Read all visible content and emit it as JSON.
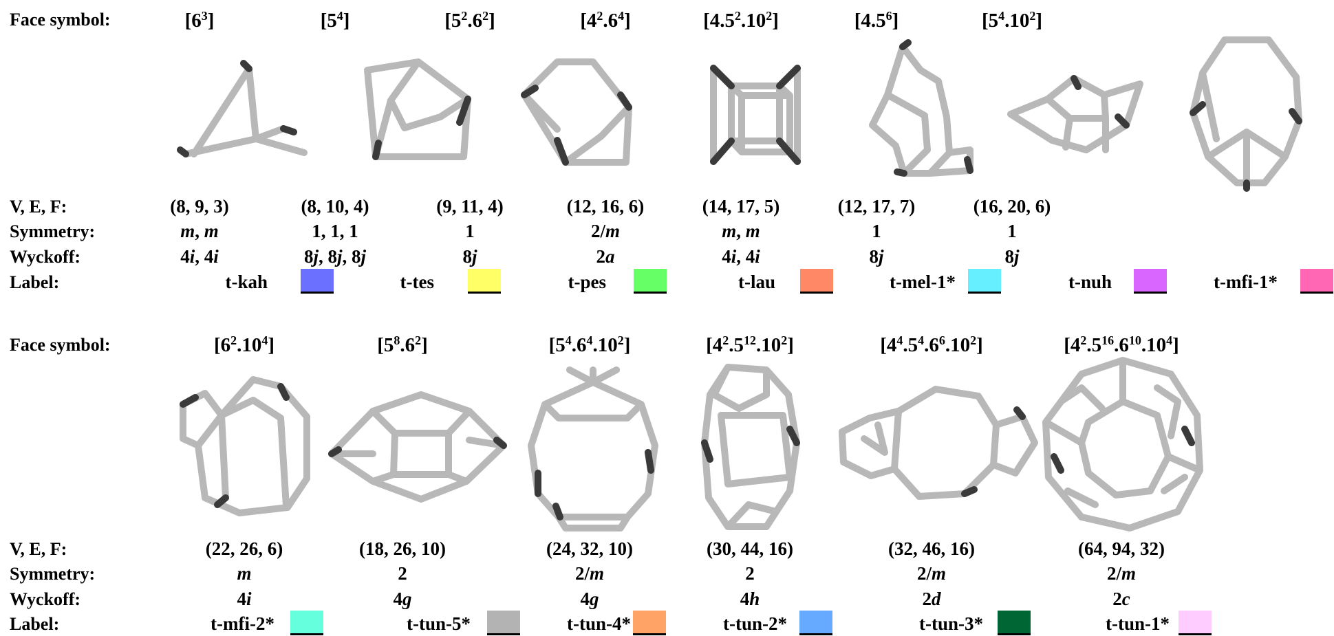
{
  "row_labels": {
    "face_symbol": "Face symbol:",
    "vef": "V, E, F:",
    "symmetry": "Symmetry:",
    "wyckoff": "Wyckoff:",
    "label": "Label:"
  },
  "tiles": [
    {
      "face": [
        [
          "6",
          "3"
        ]
      ],
      "vef": "(8, 9, 3)",
      "sym": [
        [
          "m",
          true
        ],
        [
          ", ",
          false
        ],
        [
          "m",
          true
        ]
      ],
      "wyck": [
        [
          "4",
          false
        ],
        [
          "i",
          true
        ],
        [
          ", 4",
          false
        ],
        [
          "i",
          true
        ]
      ],
      "label": "t-kah",
      "color": "#6b70ff"
    },
    {
      "face": [
        [
          "5",
          "4"
        ]
      ],
      "vef": "(8, 10, 4)",
      "sym": [
        [
          "1, 1, 1",
          false
        ]
      ],
      "wyck": [
        [
          "8",
          false
        ],
        [
          "j",
          true
        ],
        [
          ", 8",
          false
        ],
        [
          "j",
          true
        ],
        [
          ", 8",
          false
        ],
        [
          "j",
          true
        ]
      ],
      "label": "t-tes",
      "color": "#ffff66"
    },
    {
      "face": [
        [
          "5",
          "2"
        ],
        [
          ".6",
          "2"
        ]
      ],
      "vef": "(9, 11, 4)",
      "sym": [
        [
          "1",
          false
        ]
      ],
      "wyck": [
        [
          "8",
          false
        ],
        [
          "j",
          true
        ]
      ],
      "label": "t-pes",
      "color": "#66ff66"
    },
    {
      "face": [
        [
          "4",
          "2"
        ],
        [
          ".6",
          "4"
        ]
      ],
      "vef": "(12, 16, 6)",
      "sym": [
        [
          "2/",
          false
        ],
        [
          "m",
          true
        ]
      ],
      "wyck": [
        [
          "2",
          false
        ],
        [
          "a",
          true
        ]
      ],
      "label": "t-lau",
      "color": "#ff8866"
    },
    {
      "face": [
        [
          "4.5",
          "2"
        ],
        [
          ".10",
          "2"
        ]
      ],
      "vef": "(14, 17, 5)",
      "sym": [
        [
          "m",
          true
        ],
        [
          ", ",
          false
        ],
        [
          "m",
          true
        ]
      ],
      "wyck": [
        [
          "4",
          false
        ],
        [
          "i",
          true
        ],
        [
          ", 4",
          false
        ],
        [
          "i",
          true
        ]
      ],
      "label": "t-mel-1*",
      "color": "#66f0ff"
    },
    {
      "face": [
        [
          "4.5",
          "6"
        ]
      ],
      "vef": "(12, 17, 7)",
      "sym": [
        [
          "1",
          false
        ]
      ],
      "wyck": [
        [
          "8",
          false
        ],
        [
          "j",
          true
        ]
      ],
      "label": "t-nuh",
      "color": "#d966ff"
    },
    {
      "face": [
        [
          "5",
          "4"
        ],
        [
          ".10",
          "2"
        ]
      ],
      "vef": "(16, 20, 6)",
      "sym": [
        [
          "1",
          false
        ]
      ],
      "wyck": [
        [
          "8",
          false
        ],
        [
          "j",
          true
        ]
      ],
      "label": "t-mfi-1*",
      "color": "#ff66b3"
    },
    {
      "face": [
        [
          "6",
          "2"
        ],
        [
          ".10",
          "4"
        ]
      ],
      "vef": "(22, 26, 6)",
      "sym": [
        [
          "m",
          true
        ]
      ],
      "wyck": [
        [
          "4",
          false
        ],
        [
          "i",
          true
        ]
      ],
      "label": "t-mfi-2*",
      "color": "#66ffdd"
    },
    {
      "face": [
        [
          "5",
          "8"
        ],
        [
          ".6",
          "2"
        ]
      ],
      "vef": "(18, 26, 10)",
      "sym": [
        [
          "2",
          false
        ]
      ],
      "wyck": [
        [
          "4",
          false
        ],
        [
          "g",
          true
        ]
      ],
      "label": "t-tun-5*",
      "color": "#b3b3b3"
    },
    {
      "face": [
        [
          "5",
          "4"
        ],
        [
          ".6",
          "4"
        ],
        [
          ".10",
          "2"
        ]
      ],
      "vef": "(24, 32, 10)",
      "sym": [
        [
          "2/",
          false
        ],
        [
          "m",
          true
        ]
      ],
      "wyck": [
        [
          "4",
          false
        ],
        [
          "g",
          true
        ]
      ],
      "label": "t-tun-4*",
      "color": "#ffa366"
    },
    {
      "face": [
        [
          "4",
          "2"
        ],
        [
          ".5",
          "12"
        ],
        [
          ".10",
          "2"
        ]
      ],
      "vef": "(30, 44, 16)",
      "sym": [
        [
          "2",
          false
        ]
      ],
      "wyck": [
        [
          "4",
          false
        ],
        [
          "h",
          true
        ]
      ],
      "label": "t-tun-2*",
      "color": "#66aaff"
    },
    {
      "face": [
        [
          "4",
          "4"
        ],
        [
          ".5",
          "4"
        ],
        [
          ".6",
          "6"
        ],
        [
          ".10",
          "2"
        ]
      ],
      "vef": "(32, 46, 16)",
      "sym": [
        [
          "2/",
          false
        ],
        [
          "m",
          true
        ]
      ],
      "wyck": [
        [
          "2",
          false
        ],
        [
          "d",
          true
        ]
      ],
      "label": "t-tun-3*",
      "color": "#006633"
    },
    {
      "face": [
        [
          "4",
          "2"
        ],
        [
          ".5",
          "16"
        ],
        [
          ".6",
          "10"
        ],
        [
          ".10",
          "4"
        ]
      ],
      "vef": "(64, 94, 32)",
      "sym": [
        [
          "2/",
          false
        ],
        [
          "m",
          true
        ]
      ],
      "wyck": [
        [
          "2",
          false
        ],
        [
          "c",
          true
        ]
      ],
      "label": "t-tun-1*",
      "color": "#ffccff"
    }
  ]
}
